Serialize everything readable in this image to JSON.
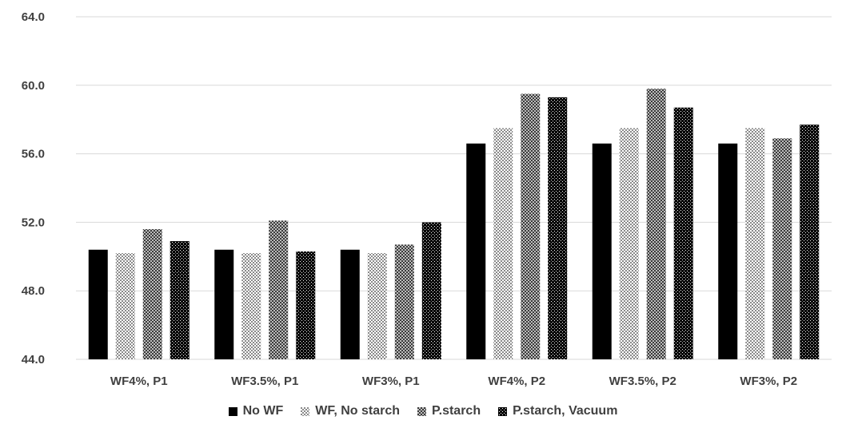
{
  "chart_data": {
    "type": "bar",
    "categories": [
      "WF4%, P1",
      "WF3.5%, P1",
      "WF3%, P1",
      "WF4%, P2",
      "WF3.5%, P2",
      "WF3%, P2"
    ],
    "series": [
      {
        "name": "No WF",
        "values": [
          50.4,
          50.4,
          50.4,
          56.6,
          56.6,
          56.6
        ],
        "pattern": "solid",
        "color": "#000000"
      },
      {
        "name": "WF, No starch",
        "values": [
          50.2,
          50.2,
          50.2,
          57.5,
          57.5,
          57.5
        ],
        "pattern": "light-check",
        "color": "#9a9a9a"
      },
      {
        "name": "P.starch",
        "values": [
          51.6,
          52.1,
          50.7,
          59.5,
          59.8,
          56.9
        ],
        "pattern": "medium-check",
        "color": "#555555"
      },
      {
        "name": "P.starch, Vacuum",
        "values": [
          50.9,
          50.3,
          52.0,
          59.3,
          58.7,
          57.7
        ],
        "pattern": "dark-check",
        "color": "#0a0a0a"
      }
    ],
    "yticks": [
      "44.0",
      "48.0",
      "52.0",
      "56.0",
      "60.0",
      "64.0"
    ],
    "ylim": [
      44,
      64
    ],
    "grid": true,
    "legend_position": "bottom",
    "title": "",
    "xlabel": "",
    "ylabel": ""
  }
}
